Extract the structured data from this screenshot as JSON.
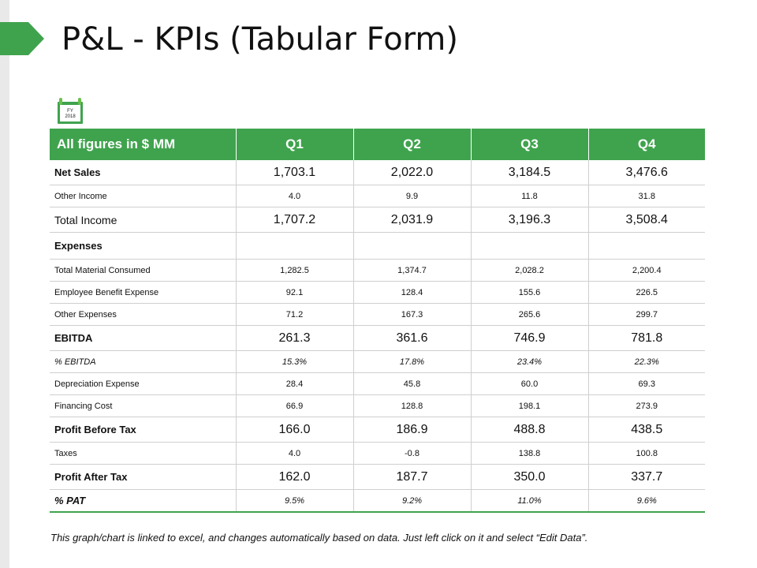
{
  "title": "P&L - KPIs (Tabular Form)",
  "icon": {
    "name": "calendar-icon",
    "line1": "FY",
    "line2": "2018"
  },
  "colors": {
    "accent": "#3fa34d"
  },
  "table": {
    "headers": [
      "All figures in $ MM",
      "Q1",
      "Q2",
      "Q3",
      "Q4"
    ],
    "rows": [
      {
        "label": "Net Sales",
        "values": [
          "1,703.1",
          "2,022.0",
          "3,184.5",
          "3,476.6"
        ],
        "style": "big bold"
      },
      {
        "label": "Other Income",
        "values": [
          "4.0",
          "9.9",
          "11.8",
          "31.8"
        ],
        "style": "small"
      },
      {
        "label": "Total Income",
        "values": [
          "1,707.2",
          "2,031.9",
          "3,196.3",
          "3,508.4"
        ],
        "style": "big total"
      },
      {
        "label": "Expenses",
        "values": [
          "",
          "",
          "",
          ""
        ],
        "style": "small bold exp"
      },
      {
        "label": "Total Material Consumed",
        "values": [
          "1,282.5",
          "1,374.7",
          "2,028.2",
          "2,200.4"
        ],
        "style": "small"
      },
      {
        "label": "Employee Benefit Expense",
        "values": [
          "92.1",
          "128.4",
          "155.6",
          "226.5"
        ],
        "style": "small"
      },
      {
        "label": "Other Expenses",
        "values": [
          "71.2",
          "167.3",
          "265.6",
          "299.7"
        ],
        "style": "small"
      },
      {
        "label": "EBITDA",
        "values": [
          "261.3",
          "361.6",
          "746.9",
          "781.8"
        ],
        "style": "big bold"
      },
      {
        "label": "% EBITDA",
        "values": [
          "15.3%",
          "17.8%",
          "23.4%",
          "22.3%"
        ],
        "style": "small italic"
      },
      {
        "label": "Depreciation Expense",
        "values": [
          "28.4",
          "45.8",
          "60.0",
          "69.3"
        ],
        "style": "small"
      },
      {
        "label": "Financing Cost",
        "values": [
          "66.9",
          "128.8",
          "198.1",
          "273.9"
        ],
        "style": "small"
      },
      {
        "label": "Profit Before Tax",
        "values": [
          "166.0",
          "186.9",
          "488.8",
          "438.5"
        ],
        "style": "big bold"
      },
      {
        "label": "Taxes",
        "values": [
          "4.0",
          "-0.8",
          "138.8",
          "100.8"
        ],
        "style": "small"
      },
      {
        "label": "Profit After Tax",
        "values": [
          "162.0",
          "187.7",
          "350.0",
          "337.7"
        ],
        "style": "big bold"
      },
      {
        "label": "% PAT",
        "values": [
          "9.5%",
          "9.2%",
          "11.0%",
          "9.6%"
        ],
        "style": "small italic bold last"
      }
    ]
  },
  "footnote": "This graph/chart is linked to excel, and changes automatically based on data. Just left click on it and select “Edit Data”."
}
